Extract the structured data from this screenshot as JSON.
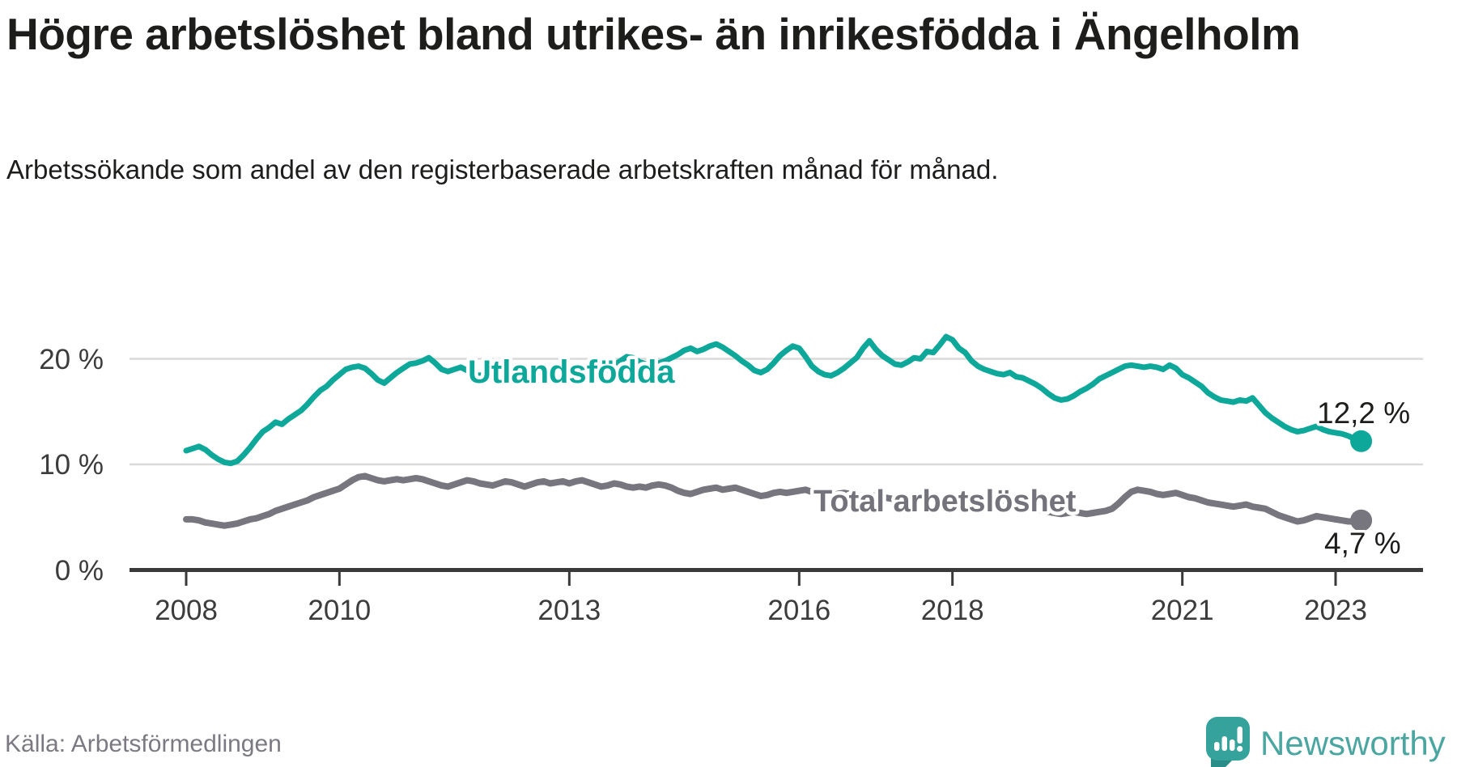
{
  "title": "Högre arbetslöshet bland utrikes- än inrikesfödda i Ängelholm",
  "subtitle": "Arbetssökande som andel av den registerbaserade arbetskraften månad för månad.",
  "source": "Källa: Arbetsförmedlingen",
  "logo": {
    "text": "Newsworthy"
  },
  "colors": {
    "foreign_born_line": "#0ea89a",
    "total_line": "#77757e",
    "grid": "#dadada",
    "axis": "#3a3a3a",
    "text_dark": "#1d1d1b",
    "logo_teal": "#4ba6a1"
  },
  "chart_data": {
    "type": "line",
    "x_unit": "month",
    "x_range": [
      "2008-01",
      "2023-05"
    ],
    "x_tick_years": [
      2008,
      2010,
      2013,
      2016,
      2018,
      2021,
      2023
    ],
    "x_tick_labels": [
      "2008",
      "2010",
      "2013",
      "2016",
      "2018",
      "2021",
      "2023"
    ],
    "y_ticks": [
      {
        "value": 0,
        "label": "0 %"
      },
      {
        "value": 10,
        "label": "10 %"
      },
      {
        "value": 20,
        "label": "20 %"
      }
    ],
    "ylim": [
      0,
      24
    ],
    "grid": "horizontal-only",
    "legend_position": "inline-labels",
    "series": [
      {
        "name": "Utlandsfödda",
        "color": "#0ea89a",
        "end_label": "12,2 %",
        "end_value": 12.2,
        "values": [
          11.3,
          11.5,
          11.7,
          11.4,
          10.9,
          10.5,
          10.2,
          10.1,
          10.3,
          10.9,
          11.6,
          12.4,
          13.1,
          13.5,
          14.0,
          13.8,
          14.3,
          14.7,
          15.1,
          15.7,
          16.4,
          17.0,
          17.4,
          18.0,
          18.5,
          19.0,
          19.2,
          19.3,
          19.1,
          18.6,
          18.0,
          17.7,
          18.2,
          18.7,
          19.1,
          19.5,
          19.6,
          19.8,
          20.1,
          19.6,
          19.0,
          18.8,
          19.0,
          19.2,
          18.9,
          18.6,
          18.4,
          18.7,
          18.9,
          19.2,
          19.4,
          19.1,
          18.8,
          18.6,
          18.9,
          19.1,
          18.8,
          18.6,
          18.8,
          18.7,
          18.8,
          19.0,
          19.1,
          18.8,
          18.6,
          18.7,
          19.0,
          19.4,
          19.8,
          20.2,
          20.1,
          19.7,
          19.5,
          19.4,
          19.6,
          19.8,
          20.1,
          20.4,
          20.8,
          21.0,
          20.7,
          20.9,
          21.2,
          21.4,
          21.1,
          20.7,
          20.3,
          19.8,
          19.4,
          18.9,
          18.7,
          19.0,
          19.6,
          20.3,
          20.8,
          21.2,
          21.0,
          20.2,
          19.3,
          18.8,
          18.5,
          18.4,
          18.7,
          19.1,
          19.6,
          20.1,
          21.0,
          21.7,
          20.9,
          20.3,
          19.9,
          19.5,
          19.4,
          19.7,
          20.1,
          20.0,
          20.7,
          20.6,
          21.3,
          22.1,
          21.8,
          21.0,
          20.6,
          19.8,
          19.3,
          19.0,
          18.8,
          18.6,
          18.5,
          18.7,
          18.3,
          18.2,
          17.9,
          17.6,
          17.2,
          16.7,
          16.3,
          16.1,
          16.2,
          16.5,
          16.9,
          17.2,
          17.6,
          18.1,
          18.4,
          18.7,
          19.0,
          19.3,
          19.4,
          19.3,
          19.2,
          19.3,
          19.2,
          19.0,
          19.4,
          19.1,
          18.5,
          18.2,
          17.8,
          17.4,
          16.8,
          16.4,
          16.1,
          16.0,
          15.9,
          16.1,
          16.0,
          16.3,
          15.6,
          14.9,
          14.4,
          14.0,
          13.6,
          13.3,
          13.1,
          13.2,
          13.4,
          13.6,
          13.3,
          13.1,
          13.0,
          12.9,
          12.7,
          12.4,
          12.2
        ]
      },
      {
        "name": "Total arbetslöshet",
        "color": "#77757e",
        "end_label": "4,7 %",
        "end_value": 4.7,
        "values": [
          4.8,
          4.8,
          4.7,
          4.5,
          4.4,
          4.3,
          4.2,
          4.3,
          4.4,
          4.6,
          4.8,
          4.9,
          5.1,
          5.3,
          5.6,
          5.8,
          6.0,
          6.2,
          6.4,
          6.6,
          6.9,
          7.1,
          7.3,
          7.5,
          7.7,
          8.1,
          8.5,
          8.8,
          8.9,
          8.7,
          8.5,
          8.4,
          8.5,
          8.6,
          8.5,
          8.6,
          8.7,
          8.6,
          8.4,
          8.2,
          8.0,
          7.9,
          8.1,
          8.3,
          8.5,
          8.4,
          8.2,
          8.1,
          8.0,
          8.2,
          8.4,
          8.3,
          8.1,
          7.9,
          8.1,
          8.3,
          8.4,
          8.2,
          8.3,
          8.4,
          8.2,
          8.4,
          8.5,
          8.3,
          8.1,
          7.9,
          8.0,
          8.2,
          8.1,
          7.9,
          7.8,
          7.9,
          7.8,
          8.0,
          8.1,
          8.0,
          7.8,
          7.5,
          7.3,
          7.2,
          7.4,
          7.6,
          7.7,
          7.8,
          7.6,
          7.7,
          7.8,
          7.6,
          7.4,
          7.2,
          7.0,
          7.1,
          7.3,
          7.4,
          7.3,
          7.4,
          7.5,
          7.6,
          7.4,
          7.2,
          7.1,
          7.0,
          7.2,
          7.3,
          7.2,
          7.1,
          7.0,
          7.1,
          7.0,
          6.9,
          6.8,
          6.7,
          6.6,
          6.5,
          6.6,
          6.8,
          6.7,
          6.6,
          6.5,
          6.6,
          6.5,
          6.4,
          6.3,
          6.2,
          6.1,
          6.0,
          6.1,
          6.2,
          6.1,
          6.0,
          5.9,
          6.0,
          5.9,
          5.8,
          5.6,
          5.5,
          5.4,
          5.3,
          5.4,
          5.5,
          5.4,
          5.3,
          5.4,
          5.5,
          5.6,
          5.8,
          6.3,
          6.9,
          7.4,
          7.6,
          7.5,
          7.4,
          7.2,
          7.1,
          7.2,
          7.3,
          7.1,
          6.9,
          6.8,
          6.6,
          6.4,
          6.3,
          6.2,
          6.1,
          6.0,
          6.1,
          6.2,
          6.0,
          5.9,
          5.8,
          5.5,
          5.2,
          5.0,
          4.8,
          4.6,
          4.7,
          4.9,
          5.1,
          5.0,
          4.9,
          4.8,
          4.7,
          4.6,
          4.6,
          4.7
        ]
      }
    ]
  }
}
